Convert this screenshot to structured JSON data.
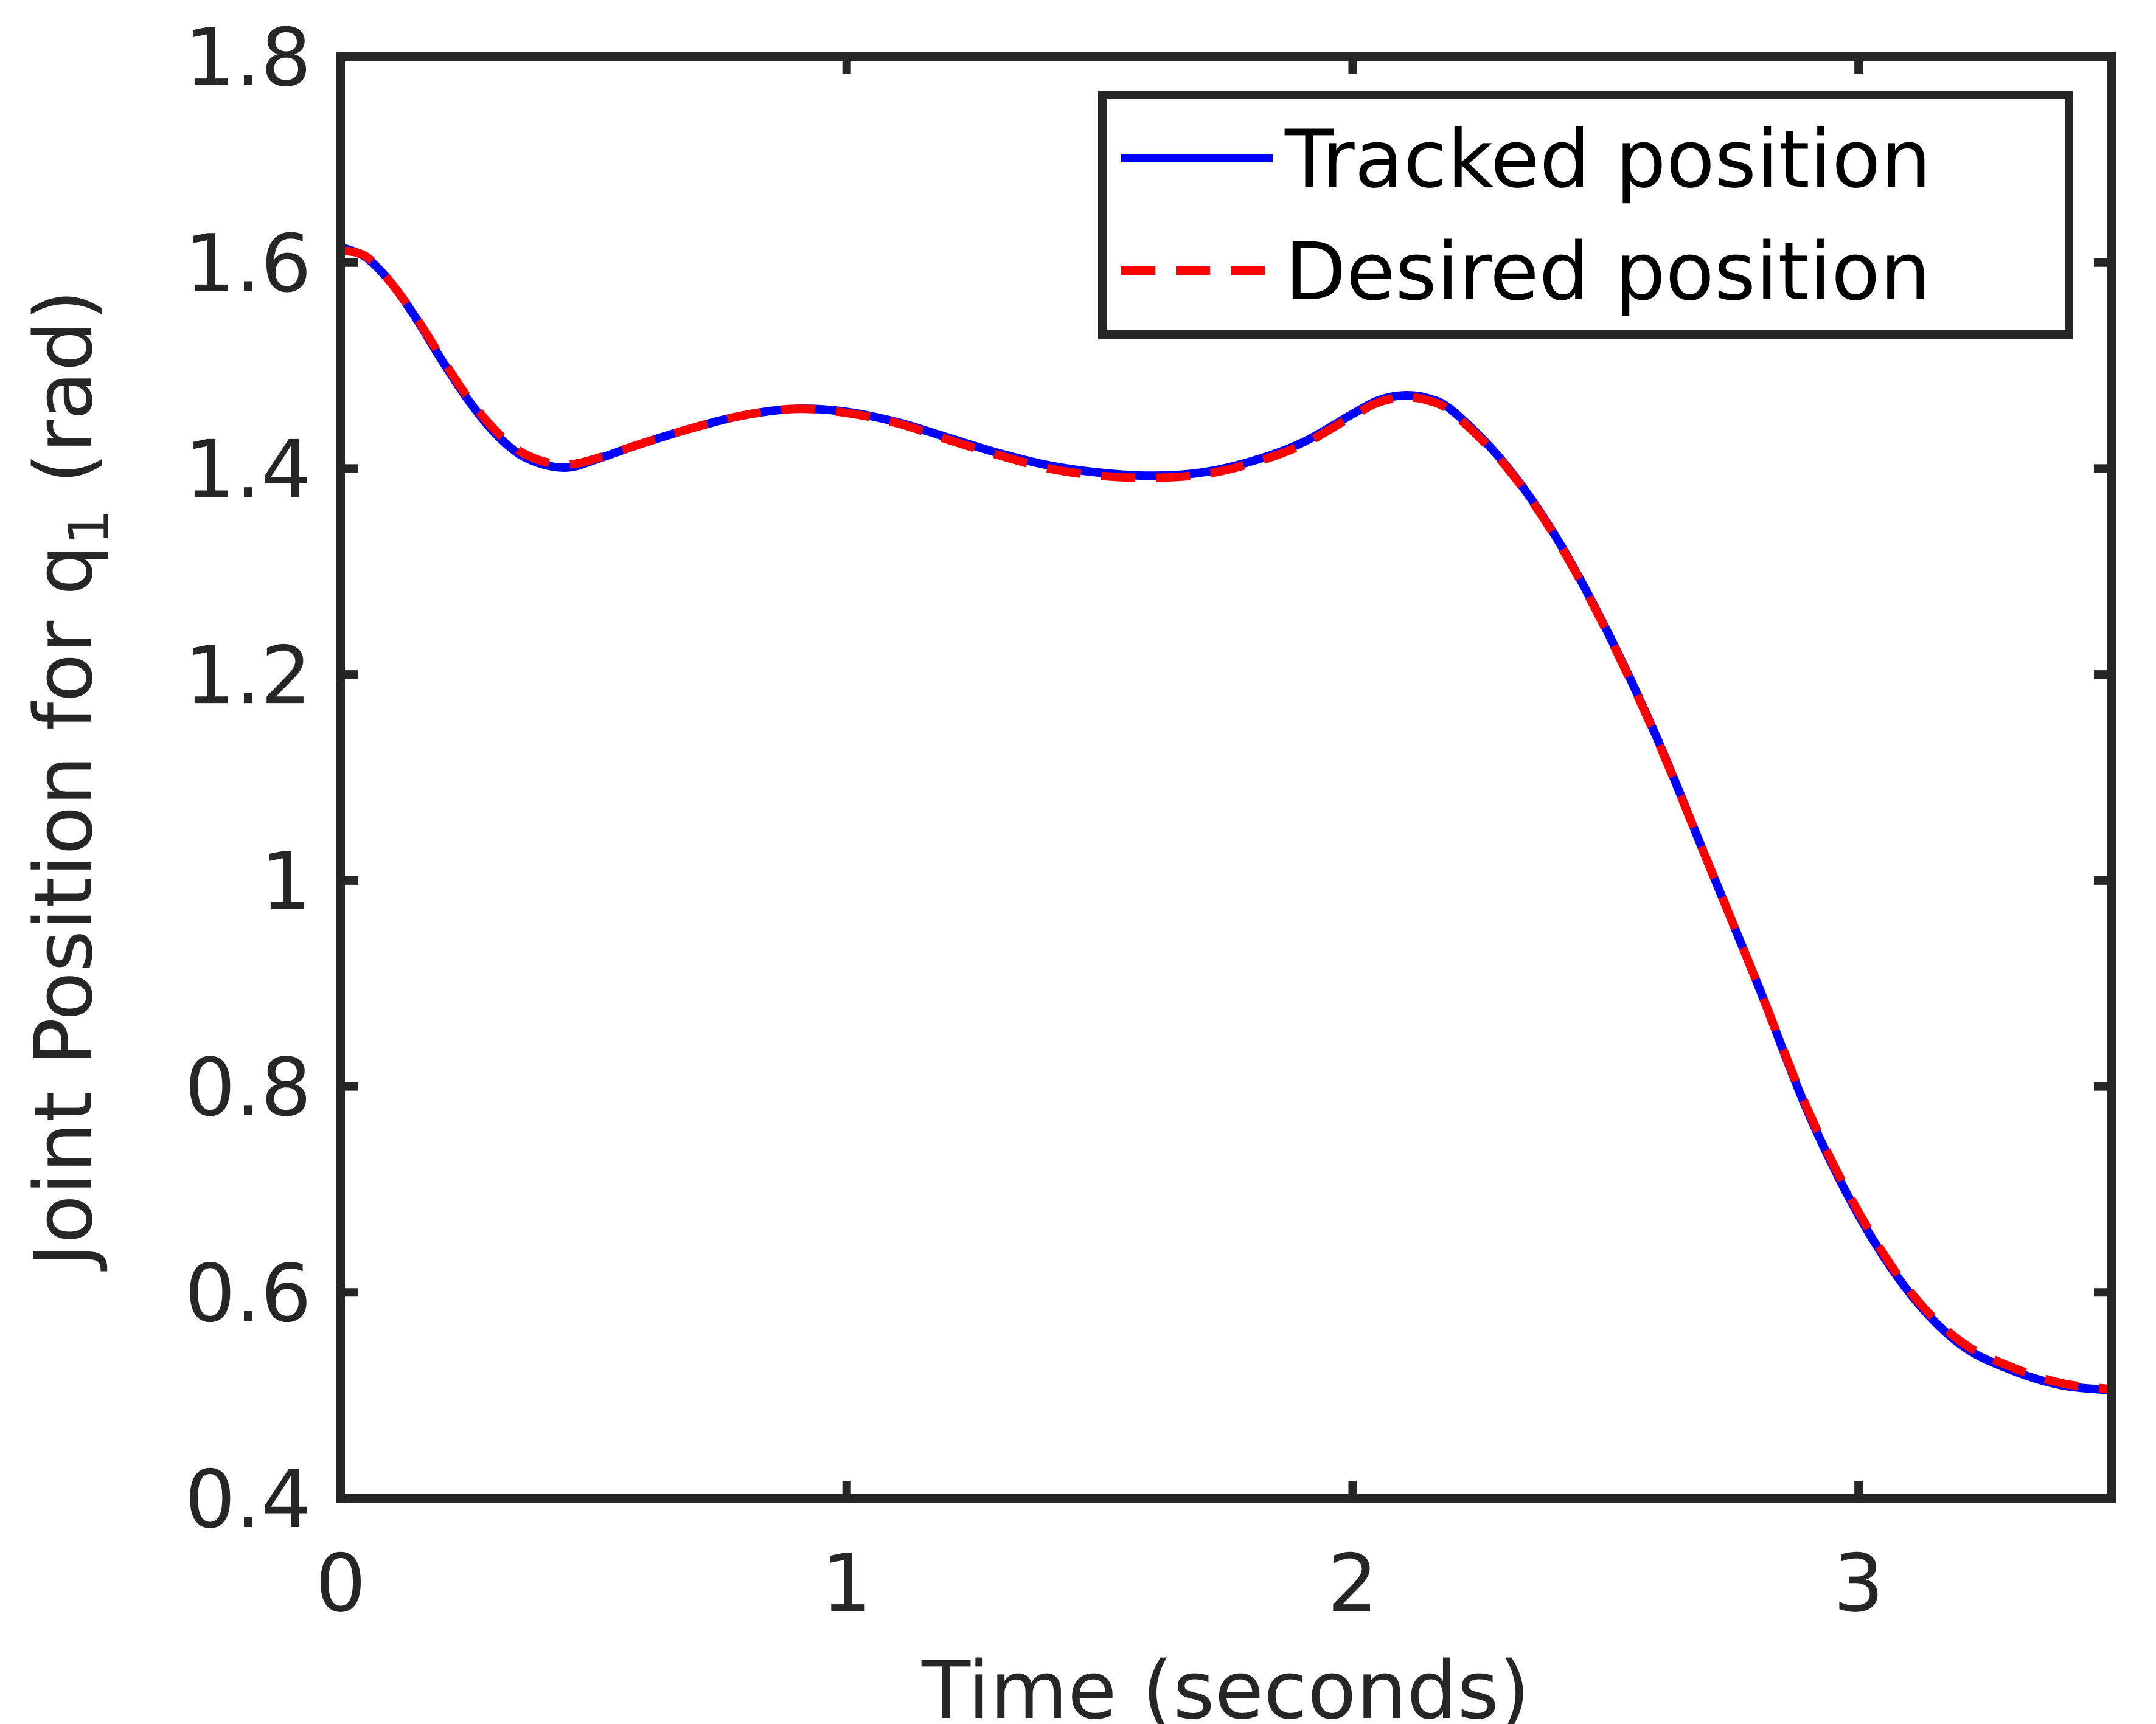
{
  "chart_data": {
    "type": "line",
    "title": "",
    "xlabel": "Time (seconds)",
    "ylabel": {
      "prefix": "Joint Position for q",
      "subscript": "1",
      "suffix": " (rad)"
    },
    "xlim": [
      0,
      3.5
    ],
    "ylim": [
      0.4,
      1.8
    ],
    "x_ticks": [
      0,
      1,
      2,
      3
    ],
    "x_tick_labels": [
      "0",
      "1",
      "2",
      "3"
    ],
    "y_ticks": [
      0.4,
      0.6,
      0.8,
      1.0,
      1.2,
      1.4,
      1.6,
      1.8
    ],
    "y_tick_labels": [
      "0.4",
      "0.6",
      "0.8",
      "1",
      "1.2",
      "1.4",
      "1.6",
      "1.8"
    ],
    "grid": false,
    "legend_position": "top-right",
    "series": [
      {
        "name": "Tracked position",
        "color": "#0000ff",
        "line_style": "solid",
        "x": [
          0,
          0.05,
          0.1,
          0.15,
          0.2,
          0.25,
          0.3,
          0.35,
          0.4,
          0.45,
          0.5,
          0.6,
          0.7,
          0.8,
          0.9,
          1.0,
          1.1,
          1.2,
          1.3,
          1.4,
          1.5,
          1.6,
          1.7,
          1.8,
          1.9,
          2.0,
          2.05,
          2.1,
          2.15,
          2.2,
          2.3,
          2.4,
          2.5,
          2.6,
          2.7,
          2.8,
          2.9,
          3.0,
          3.1,
          3.2,
          3.3,
          3.4,
          3.5
        ],
        "values": [
          1.615,
          1.605,
          1.58,
          1.545,
          1.505,
          1.468,
          1.437,
          1.415,
          1.404,
          1.401,
          1.408,
          1.425,
          1.44,
          1.452,
          1.458,
          1.455,
          1.445,
          1.43,
          1.415,
          1.403,
          1.396,
          1.393,
          1.396,
          1.407,
          1.425,
          1.453,
          1.466,
          1.471,
          1.468,
          1.455,
          1.405,
          1.335,
          1.245,
          1.14,
          1.02,
          0.9,
          0.775,
          0.675,
          0.6,
          0.55,
          0.525,
          0.51,
          0.505
        ]
      },
      {
        "name": "Desired position",
        "color": "#ff0000",
        "line_style": "dashed",
        "x": [
          0,
          0.05,
          0.1,
          0.15,
          0.2,
          0.25,
          0.3,
          0.35,
          0.4,
          0.45,
          0.5,
          0.6,
          0.7,
          0.8,
          0.9,
          1.0,
          1.1,
          1.2,
          1.3,
          1.4,
          1.5,
          1.6,
          1.7,
          1.8,
          1.9,
          2.0,
          2.05,
          2.1,
          2.15,
          2.2,
          2.3,
          2.4,
          2.5,
          2.6,
          2.7,
          2.8,
          2.9,
          3.0,
          3.1,
          3.2,
          3.3,
          3.4,
          3.5
        ],
        "values": [
          1.612,
          1.606,
          1.58,
          1.546,
          1.507,
          1.47,
          1.44,
          1.418,
          1.407,
          1.404,
          1.409,
          1.425,
          1.44,
          1.452,
          1.458,
          1.454,
          1.444,
          1.428,
          1.413,
          1.4,
          1.393,
          1.391,
          1.394,
          1.405,
          1.423,
          1.451,
          1.464,
          1.469,
          1.466,
          1.453,
          1.404,
          1.334,
          1.244,
          1.139,
          1.02,
          0.9,
          0.777,
          0.678,
          0.602,
          0.553,
          0.528,
          0.512,
          0.506
        ]
      }
    ]
  }
}
